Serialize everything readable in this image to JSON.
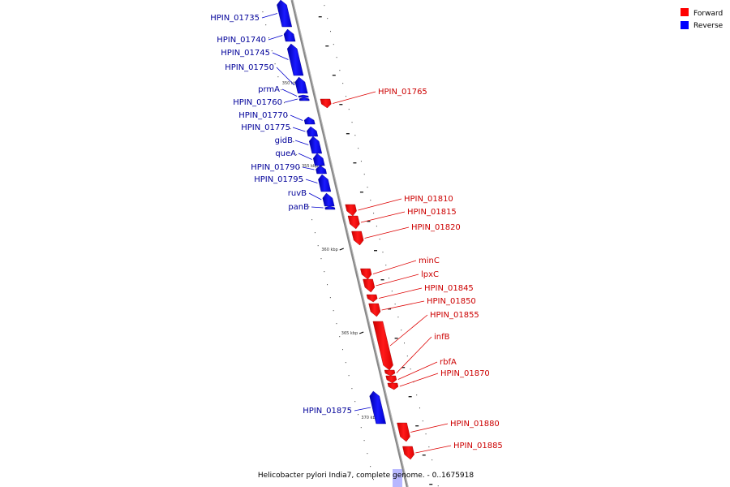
{
  "caption": "Helicobacter pylori India7, complete genome. - 0..1675918",
  "legend": [
    {
      "label": "Forward",
      "color": "#ff0000"
    },
    {
      "label": "Reverse",
      "color": "#0000ff"
    }
  ],
  "colors": {
    "forward": "#ff0000",
    "forward_text": "#cc0000",
    "reverse": "#0000ff",
    "reverse_text": "#000099",
    "axis": "#888888"
  },
  "ticks": [
    {
      "label": "350 kbp"
    },
    {
      "label": "355 kbp"
    },
    {
      "label": "360 kbp"
    },
    {
      "label": "365 kbp"
    },
    {
      "label": "370 kbp"
    }
  ],
  "genes": [
    {
      "name": "HPIN_01735",
      "strand": "reverse"
    },
    {
      "name": "HPIN_01740",
      "strand": "reverse"
    },
    {
      "name": "HPIN_01745",
      "strand": "reverse"
    },
    {
      "name": "HPIN_01750",
      "strand": "reverse"
    },
    {
      "name": "prmA",
      "strand": "reverse"
    },
    {
      "name": "HPIN_01760",
      "strand": "reverse"
    },
    {
      "name": "HPIN_01765",
      "strand": "forward"
    },
    {
      "name": "HPIN_01770",
      "strand": "reverse"
    },
    {
      "name": "HPIN_01775",
      "strand": "reverse"
    },
    {
      "name": "gidB",
      "strand": "reverse"
    },
    {
      "name": "queA",
      "strand": "reverse"
    },
    {
      "name": "HPIN_01790",
      "strand": "reverse"
    },
    {
      "name": "HPIN_01795",
      "strand": "reverse"
    },
    {
      "name": "ruvB",
      "strand": "reverse"
    },
    {
      "name": "panB",
      "strand": "reverse"
    },
    {
      "name": "HPIN_01810",
      "strand": "forward"
    },
    {
      "name": "HPIN_01815",
      "strand": "forward"
    },
    {
      "name": "HPIN_01820",
      "strand": "forward"
    },
    {
      "name": "minC",
      "strand": "forward"
    },
    {
      "name": "lpxC",
      "strand": "forward"
    },
    {
      "name": "HPIN_01845",
      "strand": "forward"
    },
    {
      "name": "HPIN_01850",
      "strand": "forward"
    },
    {
      "name": "HPIN_01855",
      "strand": "forward"
    },
    {
      "name": "infB",
      "strand": "forward"
    },
    {
      "name": "rbfA",
      "strand": "forward"
    },
    {
      "name": "HPIN_01870",
      "strand": "forward"
    },
    {
      "name": "HPIN_01875",
      "strand": "reverse"
    },
    {
      "name": "HPIN_01880",
      "strand": "forward"
    },
    {
      "name": "HPIN_01885",
      "strand": "forward"
    }
  ]
}
